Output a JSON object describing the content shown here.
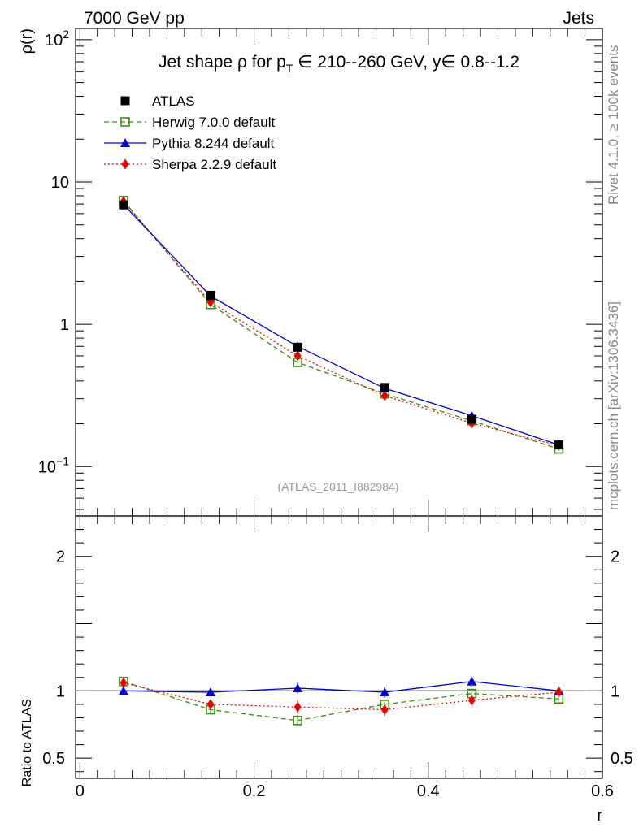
{
  "header": {
    "left": "7000 GeV pp",
    "right": "Jets"
  },
  "side_texts": {
    "rivet": "Rivet 4.1.0, ≥ 100k events",
    "mcplots": "mcplots.cern.ch [arXiv:1306.3436]"
  },
  "watermark": "(ATLAS_2011_I882984)",
  "chart_data": [
    {
      "type": "line",
      "panel": "main",
      "title": "Jet shape ρ for p_T ∈ 210--260 GeV, y∈ 0.8--1.2",
      "title_parts": {
        "pre": "Jet shape ρ for p",
        "sub": "T",
        "post": " ∈ 210--260 GeV, y∈ 0.8--1.2"
      },
      "ylabel": "ρ(r)",
      "yscale": "log",
      "ylim": [
        0.045,
        120
      ],
      "xlim": [
        -0.005,
        0.6
      ],
      "ytick_labels": [
        {
          "value": 0.1,
          "base": "10",
          "exp": "−1"
        },
        {
          "value": 1,
          "base": "1",
          "exp": ""
        },
        {
          "value": 10,
          "base": "10",
          "exp": ""
        },
        {
          "value": 100,
          "base": "10",
          "exp": "2"
        }
      ],
      "x": [
        0.05,
        0.15,
        0.25,
        0.35,
        0.45,
        0.55
      ],
      "series": [
        {
          "name": "ATLAS",
          "role": "data",
          "color": "#000000",
          "marker": "square",
          "values": [
            6.9,
            1.6,
            0.69,
            0.36,
            0.215,
            0.142
          ],
          "errors": [
            0.2,
            0.05,
            0.03,
            0.015,
            0.01,
            0.008
          ]
        },
        {
          "name": "Herwig 7.0.0 default",
          "color": "#3a8c13",
          "marker": "open-square",
          "dash": "6,4",
          "values": [
            7.4,
            1.38,
            0.54,
            0.325,
            0.21,
            0.133
          ]
        },
        {
          "name": "Pythia 8.244 default",
          "color": "#0000cc",
          "marker": "triangle",
          "dash": "",
          "values": [
            6.95,
            1.58,
            0.7,
            0.355,
            0.228,
            0.142
          ]
        },
        {
          "name": "Sherpa 2.2.9 default",
          "color": "#ee0000",
          "marker": "diamond",
          "dash": "2,3",
          "values": [
            7.3,
            1.43,
            0.6,
            0.315,
            0.202,
            0.14
          ]
        }
      ],
      "legend": "top-left"
    },
    {
      "type": "line",
      "panel": "ratio",
      "ylabel": "Ratio to ATLAS",
      "xlabel": "r",
      "ylim": [
        0.35,
        2.3
      ],
      "xlim": [
        -0.005,
        0.6
      ],
      "ytick_labels": [
        "0.5",
        "1",
        "2"
      ],
      "ytick_values": [
        0.5,
        1,
        2
      ],
      "xtick_labels": [
        "0",
        "0.2",
        "0.4",
        "0.6"
      ],
      "xtick_values": [
        0,
        0.2,
        0.4,
        0.6
      ],
      "x": [
        0.05,
        0.15,
        0.25,
        0.35,
        0.45,
        0.55
      ],
      "series": [
        {
          "name": "Herwig 7.0.0 default",
          "color": "#3a8c13",
          "marker": "open-square",
          "dash": "6,4",
          "values": [
            1.07,
            0.86,
            0.78,
            0.9,
            0.98,
            0.94
          ],
          "errors": [
            0.01,
            0.03,
            0.04,
            0.02,
            0.02,
            0.03
          ]
        },
        {
          "name": "Pythia 8.244 default",
          "color": "#0000cc",
          "marker": "triangle",
          "dash": "",
          "values": [
            1.0,
            0.99,
            1.02,
            0.99,
            1.07,
            1.0
          ],
          "errors": [
            0.01,
            0.03,
            0.04,
            0.04,
            0.04,
            0.04
          ]
        },
        {
          "name": "Sherpa 2.2.9 default",
          "color": "#ee0000",
          "marker": "diamond",
          "dash": "2,3",
          "values": [
            1.06,
            0.9,
            0.88,
            0.86,
            0.93,
            0.99
          ],
          "errors": [
            0.01,
            0.03,
            0.05,
            0.05,
            0.04,
            0.04
          ]
        }
      ]
    }
  ]
}
